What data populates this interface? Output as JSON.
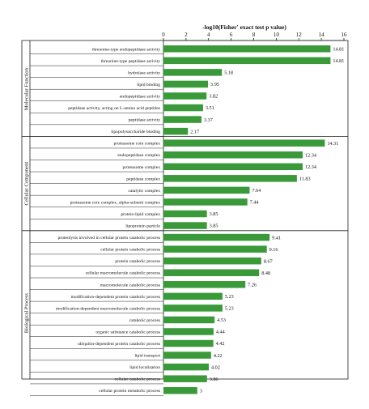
{
  "chart_data": {
    "type": "bar",
    "orientation": "horizontal",
    "title": "-log10(Fisher' exact test p value)",
    "xlim": [
      0,
      16
    ],
    "xticks": [
      "0",
      "2",
      "4",
      "6",
      "8",
      "10",
      "12",
      "14",
      "16"
    ],
    "bar_color": "#3a9a3a",
    "grid": false,
    "groups": [
      {
        "name": "Molecular Function",
        "categories": [
          "threonine-type endopeptidase activity",
          "threonine-type peptidase activity",
          "hydrolase activity",
          "lipid binding",
          "endopeptidase activity",
          "peptidase activity, acting on L-amino acid peptides",
          "peptidase activity",
          "lipopolysaccharide binding"
        ],
        "values": [
          14.81,
          14.81,
          5.18,
          3.95,
          3.82,
          3.51,
          3.37,
          2.17
        ],
        "value_labels": [
          "14.81",
          "14.81",
          "5.18",
          "3.95",
          "3.82",
          "3.51",
          "3.37",
          "2.17"
        ]
      },
      {
        "name": "Cellular Component",
        "categories": [
          "proteasome core complex",
          "endopeptidase complex",
          "proteasome complex",
          "peptidase complex",
          "catalytic complex",
          "proteasome core complex, alpha-subunit complex",
          "protein-lipid complex",
          "lipoprotein particle"
        ],
        "values": [
          14.31,
          12.34,
          12.34,
          11.83,
          7.64,
          7.44,
          3.85,
          3.85
        ],
        "value_labels": [
          "14.31",
          "12.34",
          "12.34",
          "11.83",
          "7.64",
          "7.44",
          "3.85",
          "3.85"
        ]
      },
      {
        "name": "Biological Process",
        "categories": [
          "proteolysis involved in cellular protein catabolic process",
          "cellular protein catabolic process",
          "protein catabolic process",
          "cellular macromolecule catabolic process",
          "macromolecule catabolic process",
          "modification-dependent protein catabolic process",
          "modification-dependent macromolecule catabolic process",
          "catabolic process",
          "organic substance catabolic process",
          "ubiquitin-dependent protein catabolic process",
          "lipid transport",
          "lipid localization",
          "cellular catabolic process",
          "cellular protein metabolic process"
        ],
        "values": [
          9.41,
          9.16,
          8.67,
          8.48,
          7.26,
          5.23,
          5.23,
          4.53,
          4.44,
          4.42,
          4.22,
          4.02,
          3.86,
          3
        ],
        "value_labels": [
          "9.41",
          "9.16",
          "8.67",
          "8.48",
          "7.26",
          "5.23",
          "5.23",
          "4.53",
          "4.44",
          "4.42",
          "4.22",
          "4.02",
          "3.86",
          "3"
        ]
      }
    ]
  }
}
